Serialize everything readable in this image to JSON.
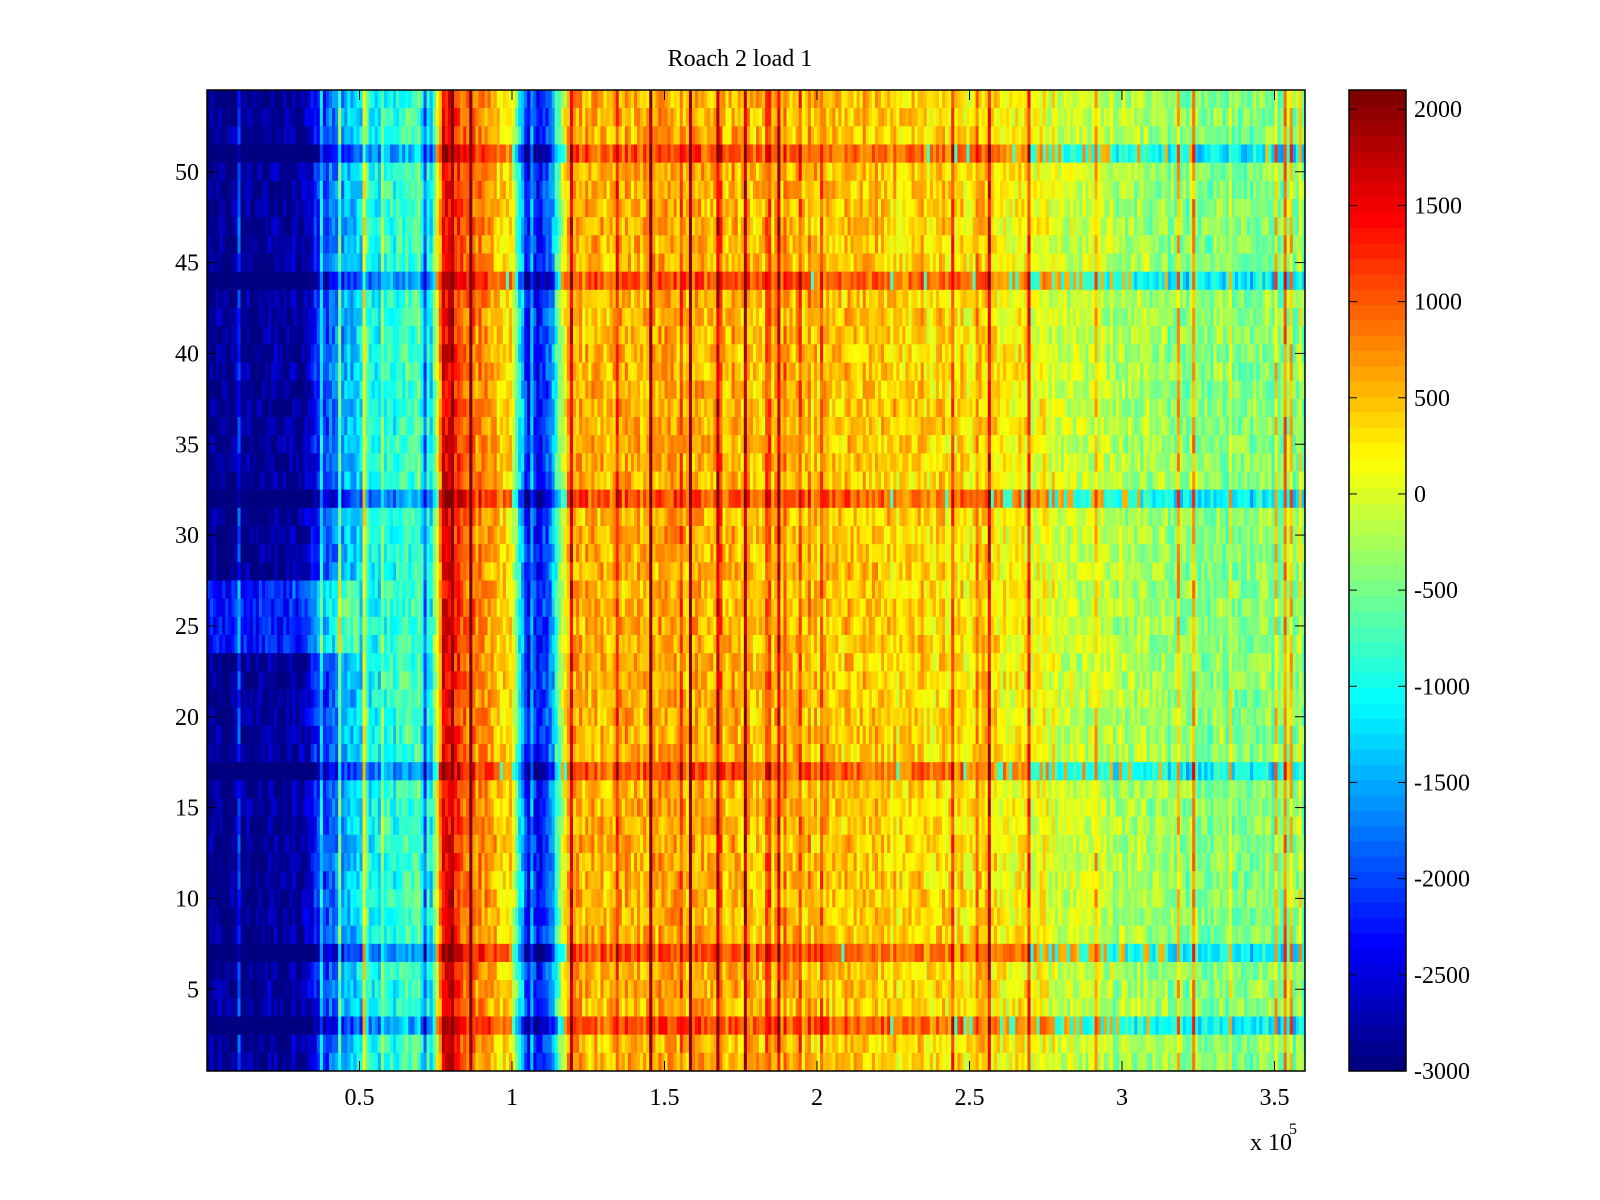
{
  "chart_data": {
    "type": "heatmap",
    "title": "Roach 2 load 1",
    "xlabel": "",
    "ylabel": "",
    "x_multiplier_label": {
      "base": "x 10",
      "exponent": "5"
    },
    "xlim": [
      0,
      3.6
    ],
    "ylim": [
      0.5,
      54.5
    ],
    "x_ticks": [
      0.5,
      1,
      1.5,
      2,
      2.5,
      3,
      3.5
    ],
    "x_tick_labels": [
      "0.5",
      "1",
      "1.5",
      "2",
      "2.5",
      "3",
      "3.5"
    ],
    "y_ticks": [
      5,
      10,
      15,
      20,
      25,
      30,
      35,
      40,
      45,
      50
    ],
    "y_tick_labels": [
      "5",
      "10",
      "15",
      "20",
      "25",
      "30",
      "35",
      "40",
      "45",
      "50"
    ],
    "rows": 54,
    "colormap": "jet",
    "clim": [
      -3000,
      2100
    ],
    "colorbar": {
      "ticks": [
        2000,
        1500,
        1000,
        500,
        0,
        -500,
        -1000,
        -1500,
        -2000,
        -2500,
        -3000
      ],
      "tick_labels": [
        "2000",
        "1500",
        "1000",
        "500",
        "0",
        "-500",
        "-1000",
        "-1500",
        "-2000",
        "-2500",
        "-3000"
      ],
      "levels": 64,
      "placement": "right"
    },
    "profile_x": [
      0,
      0.3,
      0.45,
      0.7,
      0.72,
      0.78,
      0.85,
      1.0,
      1.05,
      1.12,
      1.18,
      1.5,
      2.0,
      2.5,
      2.65,
      2.9,
      3.2,
      3.6
    ],
    "profile_mean": [
      -3000,
      -2800,
      -1500,
      -600,
      -2200,
      1700,
      900,
      300,
      -2300,
      -2100,
      500,
      600,
      450,
      350,
      200,
      -150,
      -400,
      -450
    ],
    "strong_rows": [
      3,
      7,
      17,
      32,
      44,
      51
    ],
    "weak_rows": [
      24,
      25,
      26,
      27
    ]
  }
}
